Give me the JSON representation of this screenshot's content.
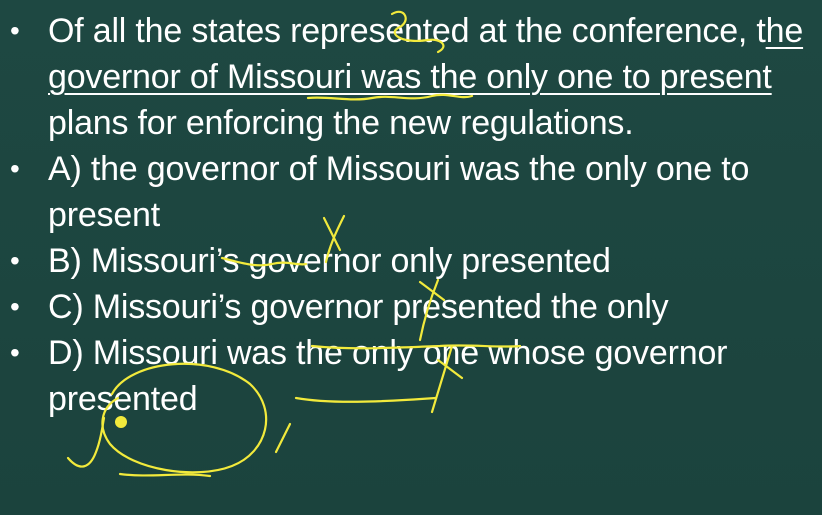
{
  "question": {
    "pre": "Of all the states represented at the conference, t",
    "underlined_a": "he governor of Missouri was the only one to present",
    "post": " plans for enforcing the new regulations."
  },
  "choices": [
    {
      "text": "A)  the governor of Missouri was the only one to present"
    },
    {
      "text": "B)  Missouri’s governor only presented"
    },
    {
      "text": "C)  Missouri’s governor presented the only"
    },
    {
      "text": "D)  Missouri was the only one whose governor presented"
    }
  ],
  "bullet_symbol": "•",
  "annotation_color": "#f2ea3c"
}
